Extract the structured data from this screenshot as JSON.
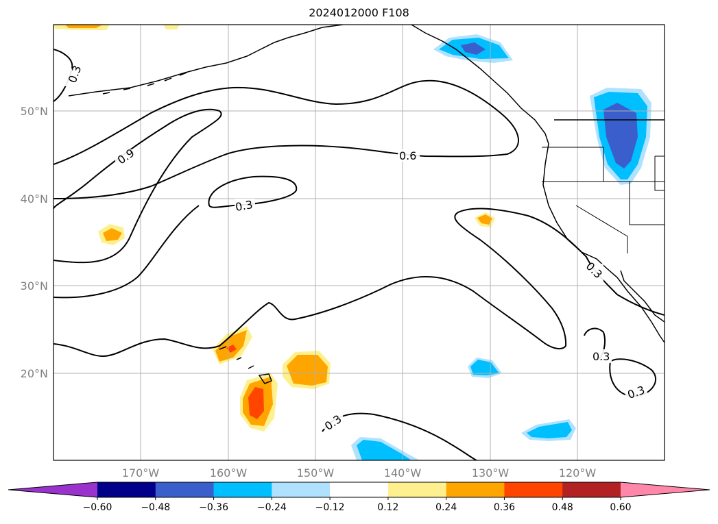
{
  "title": "2024012000 F108",
  "map": {
    "lat_labels": [
      "50°N",
      "40°N",
      "30°N",
      "20°N"
    ],
    "lon_labels": [
      "170°W",
      "160°W",
      "150°W",
      "140°W",
      "130°W",
      "120°W"
    ],
    "contour_labels": [
      "0.3",
      "0.9",
      "0.3",
      "0.6",
      "0.3",
      "0.3",
      "0.3",
      "0.3"
    ],
    "colorbar": {
      "ticks": [
        "−0.60",
        "−0.48",
        "−0.36",
        "−0.24",
        "−0.12",
        "0.12",
        "0.24",
        "0.36",
        "0.48",
        "0.60"
      ],
      "colors": [
        "#9933cc",
        "#00008b",
        "#3a5fcd",
        "#00bfff",
        "#b0e2ff",
        "#ffffff",
        "#fff08f",
        "#ffa500",
        "#ff4500",
        "#b22222",
        "#ff88aa"
      ]
    }
  }
}
